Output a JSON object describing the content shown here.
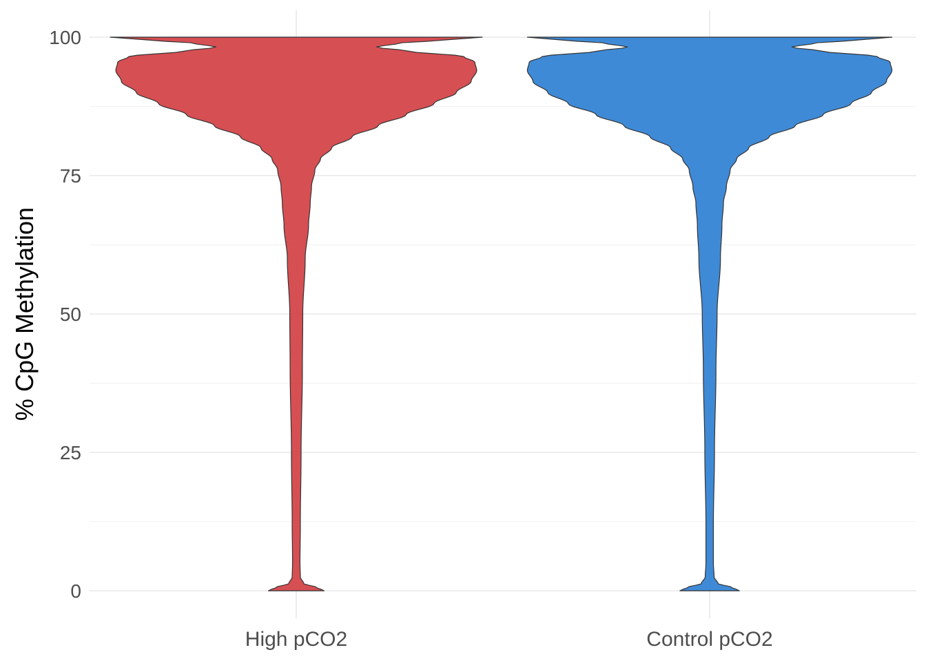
{
  "chart_data": {
    "type": "violin",
    "title": "",
    "xlabel": "",
    "ylabel": "% CpG Methylation",
    "ylim": [
      0,
      100
    ],
    "yticks": [
      0,
      25,
      50,
      75,
      100
    ],
    "grid": true,
    "legend": "none",
    "categories": [
      "High pCO2",
      "Control pCO2"
    ],
    "series": [
      {
        "category": "High pCO2",
        "fill": "#d24044",
        "profile": [
          {
            "y": 0,
            "w": 0.15
          },
          {
            "y": 0.6,
            "w": 0.11
          },
          {
            "y": 1.3,
            "w": 0.04
          },
          {
            "y": 2.5,
            "w": 0.022
          },
          {
            "y": 5,
            "w": 0.02
          },
          {
            "y": 12,
            "w": 0.022
          },
          {
            "y": 25,
            "w": 0.026
          },
          {
            "y": 40,
            "w": 0.033
          },
          {
            "y": 50,
            "w": 0.035
          },
          {
            "y": 60,
            "w": 0.048
          },
          {
            "y": 66,
            "w": 0.066
          },
          {
            "y": 70,
            "w": 0.075
          },
          {
            "y": 73,
            "w": 0.082
          },
          {
            "y": 76,
            "w": 0.1
          },
          {
            "y": 78,
            "w": 0.13
          },
          {
            "y": 80,
            "w": 0.19
          },
          {
            "y": 82,
            "w": 0.3
          },
          {
            "y": 84,
            "w": 0.44
          },
          {
            "y": 86,
            "w": 0.59
          },
          {
            "y": 88,
            "w": 0.74
          },
          {
            "y": 90,
            "w": 0.86
          },
          {
            "y": 92,
            "w": 0.94
          },
          {
            "y": 94,
            "w": 0.97
          },
          {
            "y": 95.5,
            "w": 0.96
          },
          {
            "y": 96.5,
            "w": 0.9
          },
          {
            "y": 97.5,
            "w": 0.6
          },
          {
            "y": 98.2,
            "w": 0.43
          },
          {
            "y": 98.9,
            "w": 0.55
          },
          {
            "y": 99.5,
            "w": 0.8
          },
          {
            "y": 100,
            "w": 1.0
          }
        ]
      },
      {
        "category": "Control pCO2",
        "fill": "#2f80d2",
        "profile": [
          {
            "y": 0,
            "w": 0.16
          },
          {
            "y": 0.6,
            "w": 0.12
          },
          {
            "y": 1.3,
            "w": 0.045
          },
          {
            "y": 2.5,
            "w": 0.024
          },
          {
            "y": 5,
            "w": 0.02
          },
          {
            "y": 12,
            "w": 0.02
          },
          {
            "y": 25,
            "w": 0.026
          },
          {
            "y": 40,
            "w": 0.034
          },
          {
            "y": 50,
            "w": 0.04
          },
          {
            "y": 60,
            "w": 0.058
          },
          {
            "y": 66,
            "w": 0.066
          },
          {
            "y": 70,
            "w": 0.074
          },
          {
            "y": 73,
            "w": 0.09
          },
          {
            "y": 76,
            "w": 0.11
          },
          {
            "y": 78,
            "w": 0.145
          },
          {
            "y": 80,
            "w": 0.21
          },
          {
            "y": 82,
            "w": 0.32
          },
          {
            "y": 84,
            "w": 0.46
          },
          {
            "y": 86,
            "w": 0.61
          },
          {
            "y": 88,
            "w": 0.76
          },
          {
            "y": 90,
            "w": 0.87
          },
          {
            "y": 92,
            "w": 0.95
          },
          {
            "y": 94,
            "w": 0.98
          },
          {
            "y": 95.5,
            "w": 0.97
          },
          {
            "y": 96.5,
            "w": 0.9
          },
          {
            "y": 97.5,
            "w": 0.6
          },
          {
            "y": 98.2,
            "w": 0.44
          },
          {
            "y": 98.9,
            "w": 0.56
          },
          {
            "y": 99.5,
            "w": 0.8
          },
          {
            "y": 100,
            "w": 0.98
          }
        ]
      }
    ]
  }
}
